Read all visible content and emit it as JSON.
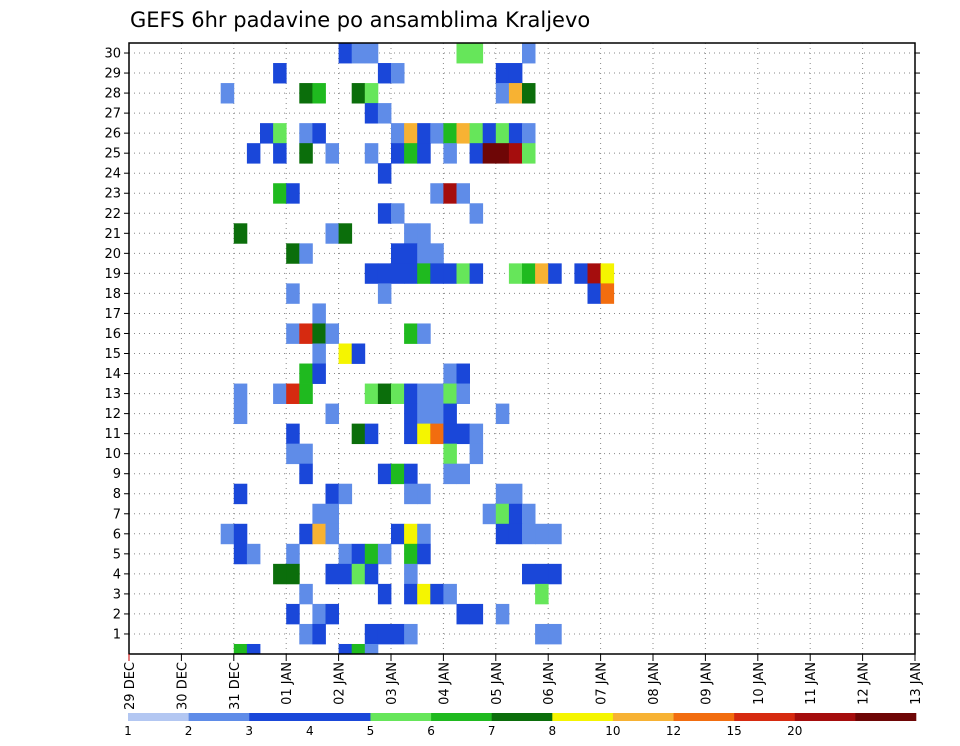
{
  "chart_data": {
    "type": "heatmap",
    "title": "GEFS 6hr padavine po ansamblima Kraljevo",
    "xlabel": "",
    "ylabel": "",
    "x_ticks": [
      "29 DEC",
      "30 DEC",
      "31 DEC",
      "01 JAN",
      "02 JAN",
      "03 JAN",
      "04 JAN",
      "05 JAN",
      "06 JAN",
      "07 JAN",
      "08 JAN",
      "09 JAN",
      "10 JAN",
      "11 JAN",
      "12 JAN",
      "13 JAN"
    ],
    "y_ticks": [
      1,
      2,
      3,
      4,
      5,
      6,
      7,
      8,
      9,
      10,
      11,
      12,
      13,
      14,
      15,
      16,
      17,
      18,
      19,
      20,
      21,
      22,
      23,
      24,
      25,
      26,
      27,
      28,
      29,
      30
    ],
    "steps_per_day": 4,
    "grid": true,
    "colorbar": {
      "labels": [
        "1",
        "2",
        "3",
        "4",
        "5",
        "6",
        "7",
        "8",
        "10",
        "12",
        "15",
        "20"
      ],
      "colors": [
        "#b3c7f2",
        "#5f8ce8",
        "#1a47d9",
        "#1a47d9",
        "#66e65a",
        "#1fba1f",
        "#0b6e0b",
        "#f5f500",
        "#f7b233",
        "#f26d0f",
        "#d62a10",
        "#a50d0d",
        "#6e0606"
      ]
    },
    "cells": [
      [
        30,
        16,
        2
      ],
      [
        30,
        17,
        1
      ],
      [
        30,
        18,
        1
      ],
      [
        30,
        25,
        4
      ],
      [
        30,
        26,
        4
      ],
      [
        30,
        30,
        1
      ],
      [
        29,
        11,
        2
      ],
      [
        29,
        19,
        3
      ],
      [
        29,
        20,
        1
      ],
      [
        29,
        28,
        2
      ],
      [
        29,
        29,
        3
      ],
      [
        28,
        7,
        1
      ],
      [
        28,
        13,
        6
      ],
      [
        28,
        14,
        5
      ],
      [
        28,
        17,
        6
      ],
      [
        28,
        18,
        4
      ],
      [
        28,
        28,
        1
      ],
      [
        28,
        29,
        8
      ],
      [
        28,
        30,
        6
      ],
      [
        27,
        18,
        2
      ],
      [
        27,
        19,
        1
      ],
      [
        26,
        10,
        2
      ],
      [
        26,
        11,
        4
      ],
      [
        26,
        13,
        1
      ],
      [
        26,
        14,
        2
      ],
      [
        26,
        20,
        1
      ],
      [
        26,
        21,
        8
      ],
      [
        26,
        22,
        2
      ],
      [
        26,
        23,
        1
      ],
      [
        26,
        24,
        5
      ],
      [
        26,
        25,
        8
      ],
      [
        26,
        26,
        4
      ],
      [
        26,
        27,
        3
      ],
      [
        26,
        28,
        4
      ],
      [
        26,
        29,
        2
      ],
      [
        26,
        30,
        1
      ],
      [
        25,
        9,
        3
      ],
      [
        25,
        11,
        2
      ],
      [
        25,
        13,
        6
      ],
      [
        25,
        15,
        1
      ],
      [
        25,
        18,
        1
      ],
      [
        25,
        20,
        2
      ],
      [
        25,
        21,
        5
      ],
      [
        25,
        22,
        2
      ],
      [
        25,
        24,
        1
      ],
      [
        25,
        26,
        2
      ],
      [
        25,
        27,
        12
      ],
      [
        25,
        28,
        12
      ],
      [
        25,
        29,
        11
      ],
      [
        25,
        30,
        4
      ],
      [
        24,
        19,
        3
      ],
      [
        23,
        11,
        5
      ],
      [
        23,
        12,
        2
      ],
      [
        23,
        23,
        1
      ],
      [
        23,
        24,
        11
      ],
      [
        23,
        25,
        1
      ],
      [
        22,
        19,
        3
      ],
      [
        22,
        20,
        1
      ],
      [
        22,
        26,
        1
      ],
      [
        21,
        8,
        6
      ],
      [
        21,
        15,
        1
      ],
      [
        21,
        16,
        6
      ],
      [
        21,
        21,
        1
      ],
      [
        21,
        22,
        1
      ],
      [
        20,
        12,
        6
      ],
      [
        20,
        13,
        1
      ],
      [
        20,
        20,
        3
      ],
      [
        20,
        21,
        2
      ],
      [
        20,
        22,
        1
      ],
      [
        20,
        23,
        1
      ],
      [
        19,
        18,
        2
      ],
      [
        19,
        19,
        3
      ],
      [
        19,
        20,
        2
      ],
      [
        19,
        21,
        3
      ],
      [
        19,
        22,
        5
      ],
      [
        19,
        23,
        2
      ],
      [
        19,
        24,
        3
      ],
      [
        19,
        25,
        4
      ],
      [
        19,
        26,
        2
      ],
      [
        19,
        29,
        4
      ],
      [
        19,
        30,
        5
      ],
      [
        19,
        31,
        8
      ],
      [
        19,
        32,
        2
      ],
      [
        19,
        34,
        3
      ],
      [
        19,
        35,
        11
      ],
      [
        19,
        36,
        7
      ],
      [
        18,
        12,
        1
      ],
      [
        18,
        19,
        1
      ],
      [
        18,
        35,
        2
      ],
      [
        18,
        36,
        9
      ],
      [
        17,
        14,
        1
      ],
      [
        16,
        12,
        1
      ],
      [
        16,
        13,
        10
      ],
      [
        16,
        14,
        6
      ],
      [
        16,
        15,
        1
      ],
      [
        16,
        21,
        5
      ],
      [
        16,
        22,
        1
      ],
      [
        15,
        14,
        1
      ],
      [
        15,
        16,
        7
      ],
      [
        15,
        17,
        3
      ],
      [
        14,
        13,
        5
      ],
      [
        14,
        14,
        2
      ],
      [
        14,
        24,
        1
      ],
      [
        14,
        25,
        2
      ],
      [
        13,
        8,
        1
      ],
      [
        13,
        11,
        1
      ],
      [
        13,
        12,
        10
      ],
      [
        13,
        13,
        5
      ],
      [
        13,
        18,
        4
      ],
      [
        13,
        19,
        6
      ],
      [
        13,
        20,
        4
      ],
      [
        13,
        21,
        3
      ],
      [
        13,
        22,
        1
      ],
      [
        13,
        23,
        1
      ],
      [
        13,
        24,
        4
      ],
      [
        13,
        25,
        1
      ],
      [
        12,
        8,
        1
      ],
      [
        12,
        15,
        1
      ],
      [
        12,
        21,
        3
      ],
      [
        12,
        22,
        1
      ],
      [
        12,
        23,
        1
      ],
      [
        12,
        24,
        3
      ],
      [
        12,
        28,
        1
      ],
      [
        11,
        12,
        2
      ],
      [
        11,
        17,
        6
      ],
      [
        11,
        18,
        3
      ],
      [
        11,
        21,
        3
      ],
      [
        11,
        22,
        7
      ],
      [
        11,
        23,
        9
      ],
      [
        11,
        24,
        3
      ],
      [
        11,
        25,
        2
      ],
      [
        11,
        26,
        1
      ],
      [
        10,
        12,
        1
      ],
      [
        10,
        13,
        1
      ],
      [
        10,
        24,
        4
      ],
      [
        10,
        26,
        1
      ],
      [
        9,
        13,
        2
      ],
      [
        9,
        19,
        3
      ],
      [
        9,
        20,
        5
      ],
      [
        9,
        21,
        2
      ],
      [
        9,
        24,
        1
      ],
      [
        9,
        25,
        1
      ],
      [
        8,
        8,
        3
      ],
      [
        8,
        15,
        3
      ],
      [
        8,
        16,
        1
      ],
      [
        8,
        21,
        1
      ],
      [
        8,
        22,
        1
      ],
      [
        8,
        28,
        1
      ],
      [
        8,
        29,
        1
      ],
      [
        7,
        14,
        1
      ],
      [
        7,
        15,
        1
      ],
      [
        7,
        27,
        1
      ],
      [
        7,
        28,
        4
      ],
      [
        7,
        29,
        3
      ],
      [
        7,
        30,
        1
      ],
      [
        6,
        7,
        1
      ],
      [
        6,
        8,
        2
      ],
      [
        6,
        13,
        2
      ],
      [
        6,
        14,
        8
      ],
      [
        6,
        15,
        1
      ],
      [
        6,
        20,
        2
      ],
      [
        6,
        21,
        7
      ],
      [
        6,
        22,
        1
      ],
      [
        6,
        28,
        3
      ],
      [
        6,
        29,
        3
      ],
      [
        6,
        30,
        1
      ],
      [
        6,
        31,
        1
      ],
      [
        6,
        32,
        1
      ],
      [
        5,
        8,
        2
      ],
      [
        5,
        9,
        1
      ],
      [
        5,
        12,
        1
      ],
      [
        5,
        16,
        1
      ],
      [
        5,
        17,
        3
      ],
      [
        5,
        18,
        5
      ],
      [
        5,
        19,
        1
      ],
      [
        5,
        21,
        5
      ],
      [
        5,
        22,
        3
      ],
      [
        4,
        11,
        6
      ],
      [
        4,
        12,
        6
      ],
      [
        4,
        15,
        3
      ],
      [
        4,
        16,
        2
      ],
      [
        4,
        17,
        4
      ],
      [
        4,
        18,
        2
      ],
      [
        4,
        21,
        1
      ],
      [
        4,
        30,
        2
      ],
      [
        4,
        31,
        3
      ],
      [
        4,
        32,
        2
      ],
      [
        3,
        13,
        1
      ],
      [
        3,
        19,
        3
      ],
      [
        3,
        21,
        3
      ],
      [
        3,
        22,
        7
      ],
      [
        3,
        23,
        2
      ],
      [
        3,
        24,
        1
      ],
      [
        3,
        31,
        4
      ],
      [
        2,
        12,
        2
      ],
      [
        2,
        14,
        1
      ],
      [
        2,
        15,
        2
      ],
      [
        2,
        25,
        3
      ],
      [
        2,
        26,
        3
      ],
      [
        2,
        28,
        1
      ],
      [
        1,
        13,
        1
      ],
      [
        1,
        14,
        2
      ],
      [
        1,
        18,
        2
      ],
      [
        1,
        19,
        3
      ],
      [
        1,
        20,
        2
      ],
      [
        1,
        21,
        1
      ],
      [
        1,
        31,
        1
      ],
      [
        1,
        32,
        1
      ],
      [
        0,
        8,
        5
      ],
      [
        0,
        9,
        3
      ],
      [
        0,
        16,
        3
      ],
      [
        0,
        17,
        5
      ],
      [
        0,
        18,
        1
      ]
    ]
  }
}
